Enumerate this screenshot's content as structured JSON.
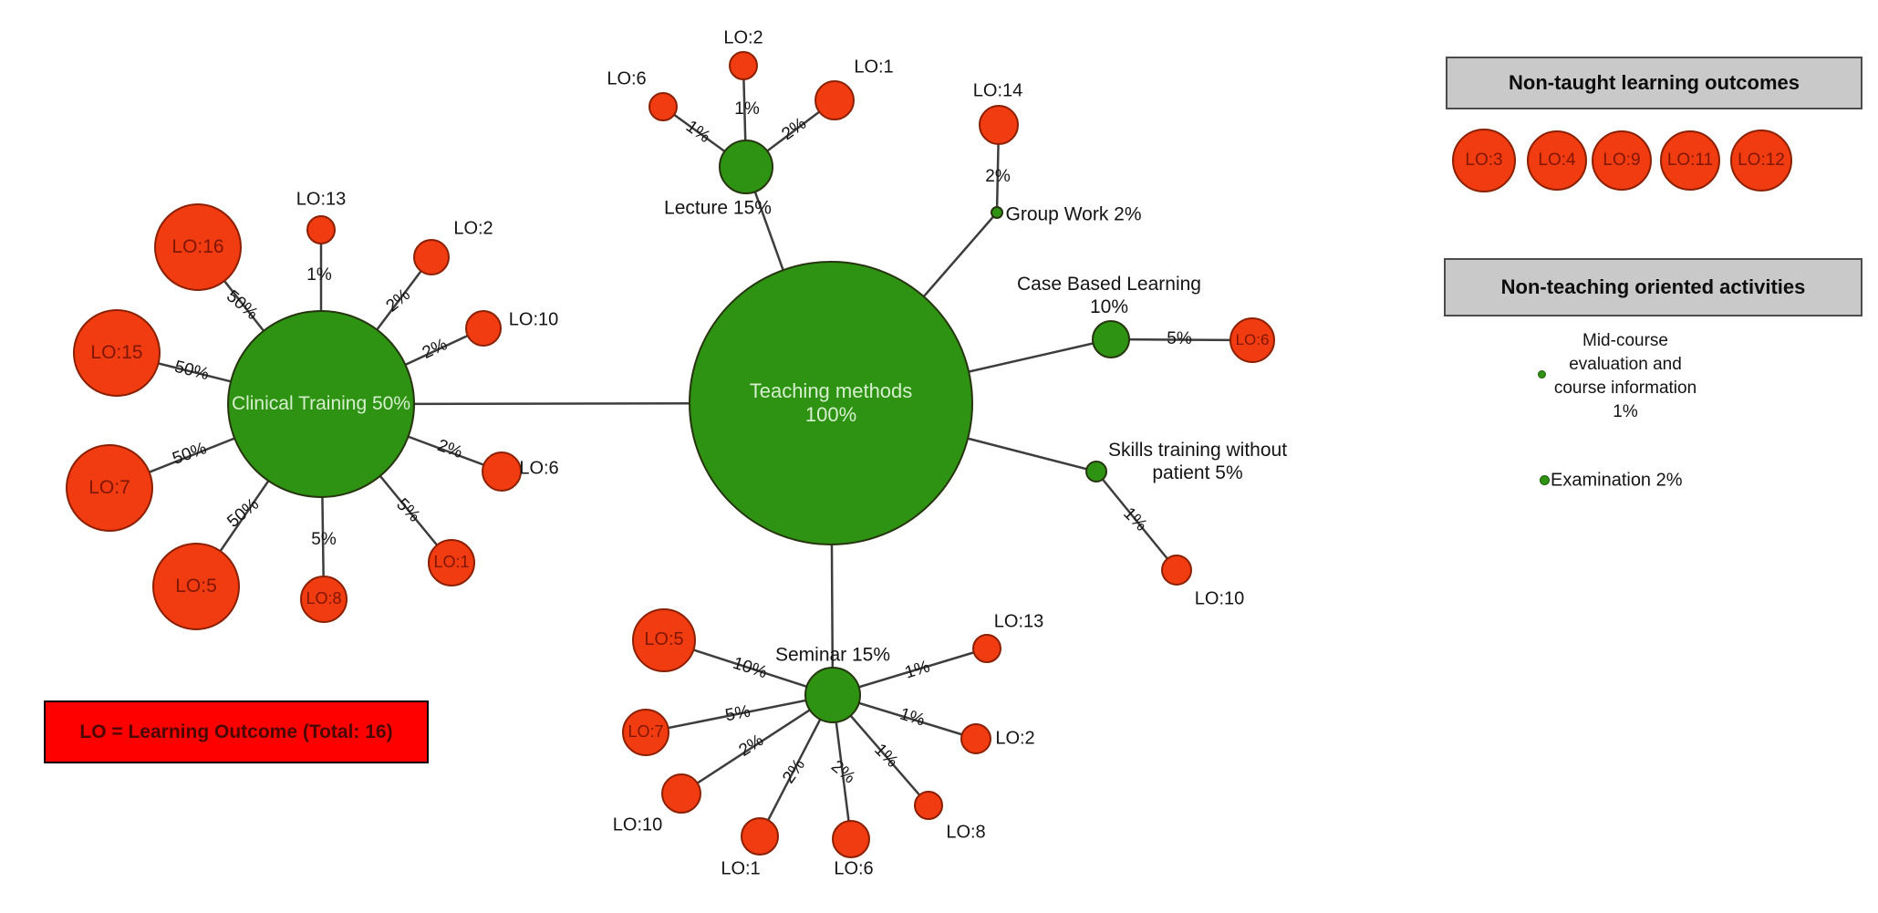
{
  "network": {
    "nodes": [
      {
        "id": "teaching",
        "color": "green",
        "placement": "inside",
        "lines": [
          "Teaching methods",
          "100%"
        ]
      },
      {
        "id": "clinical",
        "color": "green",
        "placement": "inside",
        "lines": [
          "Clinical Training 50%"
        ]
      },
      {
        "id": "lecture",
        "color": "green",
        "placement": "outside",
        "lines": [
          "Lecture 15%"
        ]
      },
      {
        "id": "group",
        "color": "green",
        "placement": "outside",
        "lines": [
          "Group Work 2%"
        ]
      },
      {
        "id": "cbl",
        "color": "green",
        "placement": "outside",
        "lines": [
          "Case Based Learning",
          "10%"
        ]
      },
      {
        "id": "skills",
        "color": "green",
        "placement": "outside",
        "lines": [
          "Skills training without",
          "patient 5%"
        ]
      },
      {
        "id": "seminar",
        "color": "green",
        "placement": "outside",
        "lines": [
          "Seminar 15%"
        ]
      },
      {
        "id": "c-lo16",
        "color": "red",
        "placement": "inside",
        "lines": [
          "LO:16"
        ]
      },
      {
        "id": "c-lo13",
        "color": "red",
        "placement": "outside",
        "lines": [
          "LO:13"
        ]
      },
      {
        "id": "c-lo2",
        "color": "red",
        "placement": "outside",
        "lines": [
          "LO:2"
        ]
      },
      {
        "id": "c-lo10",
        "color": "red",
        "placement": "outside",
        "lines": [
          "LO:10"
        ]
      },
      {
        "id": "c-lo6",
        "color": "red",
        "placement": "outside",
        "lines": [
          "LO:6"
        ]
      },
      {
        "id": "c-lo1",
        "color": "red",
        "placement": "inside",
        "lines": [
          "LO:1"
        ]
      },
      {
        "id": "c-lo8",
        "color": "red",
        "placement": "inside",
        "lines": [
          "LO:8"
        ]
      },
      {
        "id": "c-lo5",
        "color": "red",
        "placement": "inside",
        "lines": [
          "LO:5"
        ]
      },
      {
        "id": "c-lo7",
        "color": "red",
        "placement": "inside",
        "lines": [
          "LO:7"
        ]
      },
      {
        "id": "c-lo15",
        "color": "red",
        "placement": "inside",
        "lines": [
          "LO:15"
        ]
      },
      {
        "id": "l-lo6",
        "color": "red",
        "placement": "outside",
        "lines": [
          "LO:6"
        ]
      },
      {
        "id": "l-lo2",
        "color": "red",
        "placement": "outside",
        "lines": [
          "LO:2"
        ]
      },
      {
        "id": "l-lo1",
        "color": "red",
        "placement": "outside",
        "lines": [
          "LO:1"
        ]
      },
      {
        "id": "g-lo14",
        "color": "red",
        "placement": "outside",
        "lines": [
          "LO:14"
        ]
      },
      {
        "id": "cb-lo6",
        "color": "red",
        "placement": "inside",
        "lines": [
          "LO:6"
        ]
      },
      {
        "id": "s-lo10",
        "color": "red",
        "placement": "outside",
        "lines": [
          "LO:10"
        ]
      },
      {
        "id": "se-lo5",
        "color": "red",
        "placement": "inside",
        "lines": [
          "LO:5"
        ]
      },
      {
        "id": "se-lo7",
        "color": "red",
        "placement": "inside",
        "lines": [
          "LO:7"
        ]
      },
      {
        "id": "se-lo10",
        "color": "red",
        "placement": "outside",
        "lines": [
          "LO:10"
        ]
      },
      {
        "id": "se-lo1",
        "color": "red",
        "placement": "outside",
        "lines": [
          "LO:1"
        ]
      },
      {
        "id": "se-lo6",
        "color": "red",
        "placement": "outside",
        "lines": [
          "LO:6"
        ]
      },
      {
        "id": "se-lo8",
        "color": "red",
        "placement": "outside",
        "lines": [
          "LO:8"
        ]
      },
      {
        "id": "se-lo2",
        "color": "red",
        "placement": "outside",
        "lines": [
          "LO:2"
        ]
      },
      {
        "id": "se-lo13",
        "color": "red",
        "placement": "outside",
        "lines": [
          "LO:13"
        ]
      }
    ],
    "edges": [
      {
        "from": "teaching",
        "to": "clinical",
        "label": ""
      },
      {
        "from": "teaching",
        "to": "lecture",
        "label": ""
      },
      {
        "from": "teaching",
        "to": "group",
        "label": ""
      },
      {
        "from": "teaching",
        "to": "cbl",
        "label": ""
      },
      {
        "from": "teaching",
        "to": "skills",
        "label": ""
      },
      {
        "from": "teaching",
        "to": "seminar",
        "label": ""
      },
      {
        "from": "clinical",
        "to": "c-lo16",
        "label": "50%"
      },
      {
        "from": "clinical",
        "to": "c-lo13",
        "label": "1%"
      },
      {
        "from": "clinical",
        "to": "c-lo2",
        "label": "2%"
      },
      {
        "from": "clinical",
        "to": "c-lo10",
        "label": "2%"
      },
      {
        "from": "clinical",
        "to": "c-lo6",
        "label": "2%"
      },
      {
        "from": "clinical",
        "to": "c-lo1",
        "label": "5%"
      },
      {
        "from": "clinical",
        "to": "c-lo8",
        "label": "5%"
      },
      {
        "from": "clinical",
        "to": "c-lo5",
        "label": "50%"
      },
      {
        "from": "clinical",
        "to": "c-lo7",
        "label": "50%"
      },
      {
        "from": "clinical",
        "to": "c-lo15",
        "label": "50%"
      },
      {
        "from": "lecture",
        "to": "l-lo6",
        "label": "1%"
      },
      {
        "from": "lecture",
        "to": "l-lo2",
        "label": "1%"
      },
      {
        "from": "lecture",
        "to": "l-lo1",
        "label": "2%"
      },
      {
        "from": "group",
        "to": "g-lo14",
        "label": "2%"
      },
      {
        "from": "cbl",
        "to": "cb-lo6",
        "label": "5%"
      },
      {
        "from": "skills",
        "to": "s-lo10",
        "label": "1%"
      },
      {
        "from": "seminar",
        "to": "se-lo5",
        "label": "10%"
      },
      {
        "from": "seminar",
        "to": "se-lo7",
        "label": "5%"
      },
      {
        "from": "seminar",
        "to": "se-lo10",
        "label": "2%"
      },
      {
        "from": "seminar",
        "to": "se-lo1",
        "label": "2%"
      },
      {
        "from": "seminar",
        "to": "se-lo6",
        "label": "2%"
      },
      {
        "from": "seminar",
        "to": "se-lo8",
        "label": "1%"
      },
      {
        "from": "seminar",
        "to": "se-lo2",
        "label": "1%"
      },
      {
        "from": "seminar",
        "to": "se-lo13",
        "label": "1%"
      }
    ]
  },
  "panels": {
    "non_taught": {
      "title": "Non-taught learning outcomes",
      "items": [
        "LO:3",
        "LO:4",
        "LO:9",
        "LO:11",
        "LO:12"
      ]
    },
    "non_teaching": {
      "title": "Non-teaching oriented activities",
      "activities": [
        {
          "lines": [
            "Mid-course",
            "evaluation and",
            "course information",
            "1%"
          ]
        },
        {
          "lines": [
            "Examination 2%"
          ]
        }
      ]
    }
  },
  "legend": {
    "text": "LO = Learning Outcome (Total: 16)"
  },
  "colors": {
    "method_green": "#2e9312",
    "lo_red": "#f13b10",
    "lo_text_dark_red": "#7f1600",
    "panel_gray": "#c9c9c9",
    "legend_red": "#ff0000",
    "edge_gray": "#3d3d3d",
    "node_text_pale_green": "#d6efcf"
  }
}
